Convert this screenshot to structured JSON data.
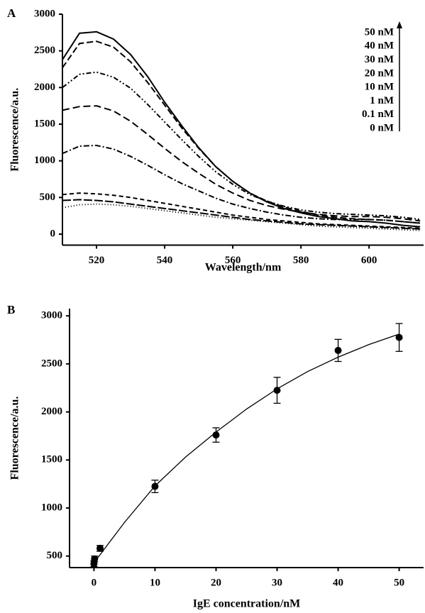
{
  "chart_data": [
    {
      "type": "line",
      "panel": "A",
      "xlabel": "Wavelength/nm",
      "ylabel": "Fluorescence/a.u.",
      "xlim": [
        510,
        616
      ],
      "ylim": [
        -150,
        3000
      ],
      "xticks": [
        520,
        540,
        560,
        580,
        600
      ],
      "yticks": [
        0,
        500,
        1000,
        1500,
        2000,
        2500,
        3000
      ],
      "x": [
        510,
        515,
        520,
        525,
        530,
        535,
        540,
        545,
        550,
        555,
        560,
        565,
        570,
        575,
        580,
        585,
        590,
        595,
        600,
        605,
        610,
        615
      ],
      "series": [
        {
          "name": "50 nM",
          "color": "#000000",
          "dash": "none",
          "values": [
            2380,
            2740,
            2760,
            2660,
            2450,
            2150,
            1800,
            1480,
            1180,
            920,
            720,
            560,
            440,
            350,
            290,
            240,
            210,
            180,
            170,
            150,
            120,
            100
          ]
        },
        {
          "name": "40 nM",
          "color": "#000000",
          "dash": "9 4",
          "values": [
            2270,
            2600,
            2630,
            2550,
            2350,
            2070,
            1760,
            1450,
            1170,
            920,
            720,
            560,
            450,
            370,
            310,
            260,
            230,
            210,
            200,
            190,
            170,
            150
          ]
        },
        {
          "name": "30 nM",
          "color": "#000000",
          "dash": "7 3 2 3 2 3",
          "values": [
            2000,
            2180,
            2210,
            2140,
            1990,
            1770,
            1530,
            1290,
            1060,
            850,
            680,
            540,
            450,
            380,
            330,
            300,
            280,
            270,
            260,
            250,
            230,
            200
          ]
        },
        {
          "name": "20 nM",
          "color": "#000000",
          "dash": "10 5",
          "values": [
            1690,
            1740,
            1750,
            1680,
            1540,
            1360,
            1170,
            990,
            830,
            680,
            560,
            460,
            390,
            340,
            300,
            270,
            250,
            240,
            240,
            230,
            210,
            180
          ]
        },
        {
          "name": "10 nM",
          "color": "#000000",
          "dash": "8 3 2 3",
          "values": [
            1100,
            1200,
            1210,
            1160,
            1060,
            940,
            810,
            690,
            590,
            490,
            410,
            350,
            300,
            260,
            230,
            210,
            200,
            200,
            200,
            190,
            170,
            150
          ]
        },
        {
          "name": "1 nM",
          "color": "#000000",
          "dash": "6 4",
          "values": [
            540,
            560,
            550,
            530,
            500,
            460,
            420,
            380,
            340,
            300,
            260,
            230,
            200,
            180,
            160,
            140,
            130,
            120,
            110,
            100,
            90,
            80
          ]
        },
        {
          "name": "0.1 nM",
          "color": "#000000",
          "dash": "12 3",
          "values": [
            460,
            470,
            460,
            440,
            410,
            380,
            350,
            320,
            290,
            260,
            230,
            200,
            180,
            160,
            140,
            130,
            120,
            110,
            100,
            90,
            80,
            70
          ]
        },
        {
          "name": "0 nM",
          "color": "#000000",
          "dash": "1 3",
          "values": [
            360,
            400,
            410,
            400,
            380,
            350,
            320,
            290,
            260,
            230,
            210,
            190,
            170,
            150,
            130,
            110,
            100,
            90,
            80,
            70,
            60,
            50
          ]
        }
      ]
    },
    {
      "type": "scatter",
      "panel": "B",
      "xlabel": "IgE concentration/nM",
      "ylabel": "Fluorescence/a.u.",
      "xlim": [
        -4,
        54
      ],
      "ylim": [
        380,
        3075
      ],
      "xticks": [
        0,
        10,
        20,
        30,
        40,
        50
      ],
      "yticks": [
        500,
        1000,
        1500,
        2000,
        2500,
        3000
      ],
      "color": "#000000",
      "x": [
        0,
        0.1,
        1,
        10,
        20,
        30,
        40,
        50
      ],
      "values": [
        420,
        470,
        580,
        1225,
        1760,
        2225,
        2640,
        2775
      ],
      "errors": [
        30,
        30,
        30,
        65,
        75,
        135,
        115,
        145
      ],
      "fit": {
        "x": [
          0,
          5,
          10,
          15,
          20,
          25,
          30,
          35,
          40,
          45,
          50
        ],
        "values": [
          430,
          850,
          1230,
          1530,
          1790,
          2030,
          2240,
          2420,
          2570,
          2700,
          2810
        ]
      }
    }
  ]
}
